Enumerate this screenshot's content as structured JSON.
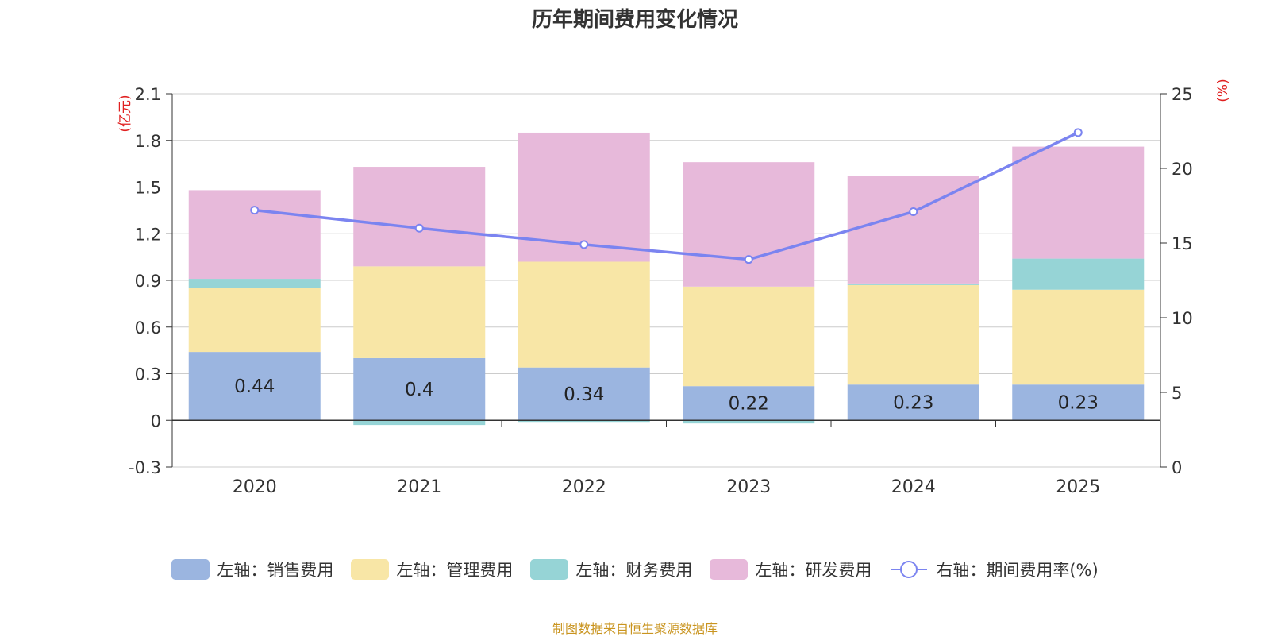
{
  "chart_data": {
    "type": "bar",
    "stacked": true,
    "title": "历年期间费用变化情况",
    "categories": [
      "2020",
      "2021",
      "2022",
      "2023",
      "2024",
      "2025"
    ],
    "left_axis": {
      "unit": "(亿元)",
      "ylim": [
        -0.3,
        2.1
      ],
      "ticks": [
        "2.1",
        "1.8",
        "1.5",
        "1.2",
        "0.9",
        "0.6",
        "0.3",
        "0",
        "-0.3"
      ]
    },
    "right_axis": {
      "unit": "(%)",
      "ylim": [
        0,
        25
      ],
      "ticks": [
        "25",
        "20",
        "15",
        "10",
        "5",
        "0"
      ]
    },
    "series": [
      {
        "name": "左轴：销售费用",
        "axis": "left",
        "color": "#9bb5e0",
        "values": [
          0.44,
          0.4,
          0.34,
          0.22,
          0.23,
          0.23
        ],
        "labels": [
          "0.44",
          "0.4",
          "0.34",
          "0.22",
          "0.23",
          "0.23"
        ]
      },
      {
        "name": "左轴：管理费用",
        "axis": "left",
        "color": "#f8e6a6",
        "values": [
          0.41,
          0.59,
          0.68,
          0.64,
          0.64,
          0.61
        ]
      },
      {
        "name": "左轴：财务费用",
        "axis": "left",
        "color": "#96d4d6",
        "values": [
          0.06,
          -0.03,
          -0.01,
          -0.02,
          0.01,
          0.2
        ]
      },
      {
        "name": "左轴：研发费用",
        "axis": "left",
        "color": "#e7b9da",
        "values": [
          0.57,
          0.64,
          0.83,
          0.8,
          0.69,
          0.72
        ]
      }
    ],
    "line": {
      "name": "右轴：期间费用率(%)",
      "axis": "right",
      "color": "#7b84f0",
      "values": [
        17.2,
        16.0,
        14.9,
        13.9,
        17.1,
        22.4
      ]
    },
    "source": "制图数据来自恒生聚源数据库"
  }
}
